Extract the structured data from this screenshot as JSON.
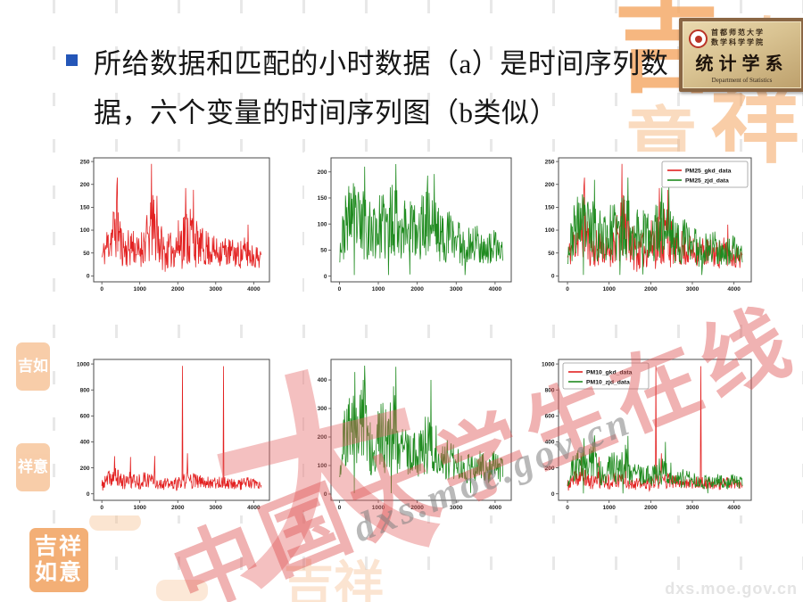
{
  "title": {
    "text": "所给数据和匹配的小时数据（a）是时间序列数据，六个变量的时间序列图（b类似）"
  },
  "plaque": {
    "line1": "首都师范大学",
    "line2": "数学科学学院",
    "dept": "统计学系",
    "english": "Department of Statistics"
  },
  "watermark": {
    "logo_char": "大",
    "text": "中国大学生在线",
    "url": "dxs.moe.gov.cn",
    "corner_url": "dxs.moe.gov.cn",
    "accent_color": "#e05050"
  },
  "decorations": {
    "color": "#f5a661",
    "ornament_chars": [
      "吉",
      "祥",
      "如",
      "意"
    ],
    "seal_small_1": "吉如",
    "seal_small_2": "祥意",
    "seal_large": "吉祥如意",
    "seal_faint": "吉祥"
  },
  "chart_data": {
    "type": "line",
    "note": "six matplotlib time-series panels; values estimated from axes",
    "series_library": {
      "PM25_gkd_data": {
        "color": "#e32222",
        "seed": 11,
        "keypoints": [
          [
            0,
            40,
            25
          ],
          [
            150,
            70,
            45
          ],
          [
            300,
            95,
            65
          ],
          [
            400,
            118,
            85
          ],
          [
            500,
            70,
            50
          ],
          [
            650,
            55,
            38
          ],
          [
            800,
            70,
            50
          ],
          [
            950,
            50,
            32
          ],
          [
            1100,
            70,
            50
          ],
          [
            1250,
            85,
            65
          ],
          [
            1350,
            105,
            78
          ],
          [
            1500,
            80,
            60
          ],
          [
            1650,
            48,
            40
          ],
          [
            1800,
            55,
            40
          ],
          [
            1950,
            62,
            46
          ],
          [
            2100,
            80,
            65
          ],
          [
            2250,
            90,
            76
          ],
          [
            2400,
            88,
            74
          ],
          [
            2550,
            62,
            40
          ],
          [
            2700,
            62,
            45
          ],
          [
            2850,
            58,
            38
          ],
          [
            3000,
            52,
            32
          ],
          [
            3150,
            56,
            36
          ],
          [
            3300,
            52,
            33
          ],
          [
            3450,
            50,
            31
          ],
          [
            3600,
            46,
            30
          ],
          [
            3750,
            50,
            36
          ],
          [
            3900,
            46,
            30
          ],
          [
            4050,
            42,
            26
          ],
          [
            4200,
            40,
            22
          ]
        ],
        "spikes": [
          [
            408,
            215
          ],
          [
            1308,
            245
          ],
          [
            1452,
            175
          ],
          [
            2208,
            192
          ],
          [
            2412,
            188
          ],
          [
            3852,
            112
          ]
        ]
      },
      "PM25_zjd_data": {
        "color": "#1f8b1f",
        "seed": 23,
        "keypoints": [
          [
            0,
            48,
            26
          ],
          [
            150,
            95,
            60
          ],
          [
            300,
            122,
            66
          ],
          [
            420,
            108,
            76
          ],
          [
            550,
            92,
            64
          ],
          [
            650,
            112,
            80
          ],
          [
            800,
            86,
            58
          ],
          [
            950,
            92,
            60
          ],
          [
            1100,
            95,
            64
          ],
          [
            1250,
            90,
            70
          ],
          [
            1400,
            118,
            80
          ],
          [
            1550,
            95,
            62
          ],
          [
            1700,
            92,
            64
          ],
          [
            1850,
            100,
            70
          ],
          [
            2000,
            68,
            42
          ],
          [
            2150,
            104,
            68
          ],
          [
            2300,
            108,
            70
          ],
          [
            2450,
            100,
            66
          ],
          [
            2600,
            72,
            46
          ],
          [
            2750,
            76,
            52
          ],
          [
            2900,
            78,
            52
          ],
          [
            3050,
            70,
            45
          ],
          [
            3200,
            58,
            42
          ],
          [
            3350,
            58,
            36
          ],
          [
            3500,
            66,
            40
          ],
          [
            3650,
            60,
            38
          ],
          [
            3800,
            48,
            30
          ],
          [
            3950,
            56,
            34
          ],
          [
            4100,
            50,
            30
          ],
          [
            4200,
            46,
            26
          ]
        ],
        "spikes": [
          [
            648,
            210
          ],
          [
            1452,
            215
          ],
          [
            2268,
            193
          ],
          [
            2436,
            196
          ],
          [
            384,
            2
          ],
          [
            1260,
            2
          ],
          [
            1812,
            3
          ],
          [
            3228,
            2
          ]
        ]
      },
      "PM10_gkd_data": {
        "color": "#e32222",
        "seed": 37,
        "keypoints": [
          [
            0,
            60,
            40
          ],
          [
            150,
            108,
            66
          ],
          [
            300,
            128,
            80
          ],
          [
            450,
            118,
            75
          ],
          [
            600,
            86,
            55
          ],
          [
            750,
            104,
            70
          ],
          [
            900,
            95,
            60
          ],
          [
            1050,
            100,
            64
          ],
          [
            1200,
            108,
            70
          ],
          [
            1350,
            118,
            78
          ],
          [
            1500,
            90,
            55
          ],
          [
            1650,
            76,
            48
          ],
          [
            1800,
            72,
            50
          ],
          [
            1950,
            72,
            50
          ],
          [
            2100,
            80,
            55
          ],
          [
            2250,
            112,
            84
          ],
          [
            2400,
            104,
            60
          ],
          [
            2550,
            92,
            52
          ],
          [
            2700,
            90,
            50
          ],
          [
            2850,
            92,
            52
          ],
          [
            3000,
            90,
            50
          ],
          [
            3150,
            85,
            46
          ],
          [
            3300,
            82,
            45
          ],
          [
            3450,
            80,
            42
          ],
          [
            3600,
            72,
            42
          ],
          [
            3750,
            88,
            58
          ],
          [
            3900,
            80,
            48
          ],
          [
            4050,
            68,
            40
          ],
          [
            4200,
            60,
            32
          ]
        ],
        "spikes": [
          [
            2124,
            985
          ],
          [
            3204,
            983
          ],
          [
            336,
            290
          ],
          [
            756,
            284
          ],
          [
            1392,
            292
          ],
          [
            2256,
            312
          ]
        ]
      },
      "PM10_zjd_data": {
        "color": "#1f8b1f",
        "seed": 51,
        "keypoints": [
          [
            0,
            95,
            45
          ],
          [
            150,
            198,
            120
          ],
          [
            300,
            238,
            140
          ],
          [
            420,
            210,
            140
          ],
          [
            550,
            238,
            150
          ],
          [
            650,
            258,
            160
          ],
          [
            800,
            170,
            105
          ],
          [
            950,
            184,
            115
          ],
          [
            1100,
            200,
            124
          ],
          [
            1250,
            200,
            134
          ],
          [
            1400,
            232,
            150
          ],
          [
            1550,
            150,
            86
          ],
          [
            1700,
            160,
            100
          ],
          [
            1850,
            164,
            104
          ],
          [
            2000,
            124,
            74
          ],
          [
            2150,
            168,
            104
          ],
          [
            2300,
            174,
            104
          ],
          [
            2450,
            164,
            100
          ],
          [
            2600,
            115,
            66
          ],
          [
            2750,
            124,
            74
          ],
          [
            2900,
            124,
            72
          ],
          [
            3050,
            114,
            68
          ],
          [
            3200,
            92,
            55
          ],
          [
            3350,
            92,
            52
          ],
          [
            3500,
            108,
            62
          ],
          [
            3650,
            95,
            55
          ],
          [
            3800,
            82,
            45
          ],
          [
            3950,
            98,
            55
          ],
          [
            4100,
            88,
            50
          ],
          [
            4200,
            80,
            42
          ]
        ],
        "spikes": [
          [
            396,
            428
          ],
          [
            648,
            450
          ],
          [
            1452,
            446
          ],
          [
            2352,
            400
          ],
          [
            384,
            3
          ],
          [
            1332,
            3
          ],
          [
            3372,
            4
          ]
        ]
      }
    },
    "charts": [
      {
        "name": "pm25-gkd-timeseries",
        "xlim": [
          -215,
          4415
        ],
        "ylim": [
          -13,
          258
        ],
        "xticks": [
          0,
          1000,
          2000,
          3000,
          4000
        ],
        "yticks": [
          0,
          50,
          100,
          150,
          200,
          250
        ],
        "series": [
          "PM25_gkd_data"
        ],
        "legend": null
      },
      {
        "name": "pm25-zjd-timeseries",
        "xlim": [
          -215,
          4415
        ],
        "ylim": [
          -11,
          227
        ],
        "xticks": [
          0,
          1000,
          2000,
          3000,
          4000
        ],
        "yticks": [
          0,
          50,
          100,
          150,
          200
        ],
        "series": [
          "PM25_zjd_data"
        ],
        "legend": null
      },
      {
        "name": "pm25-overlay-timeseries",
        "xlim": [
          -215,
          4415
        ],
        "ylim": [
          -13,
          258
        ],
        "xticks": [
          0,
          1000,
          2000,
          3000,
          4000
        ],
        "yticks": [
          0,
          50,
          100,
          150,
          200,
          250
        ],
        "series": [
          "PM25_gkd_data",
          "PM25_zjd_data"
        ],
        "legend": "upper-right"
      },
      {
        "name": "pm10-gkd-timeseries",
        "xlim": [
          -215,
          4415
        ],
        "ylim": [
          -50,
          1035
        ],
        "xticks": [
          0,
          1000,
          2000,
          3000,
          4000
        ],
        "yticks": [
          0,
          200,
          400,
          600,
          800,
          1000
        ],
        "series": [
          "PM10_gkd_data"
        ],
        "legend": null
      },
      {
        "name": "pm10-zjd-timeseries",
        "xlim": [
          -215,
          4415
        ],
        "ylim": [
          -22,
          472
        ],
        "xticks": [
          0,
          1000,
          2000,
          3000,
          4000
        ],
        "yticks": [
          0,
          100,
          200,
          300,
          400
        ],
        "series": [
          "PM10_zjd_data"
        ],
        "legend": null
      },
      {
        "name": "pm10-overlay-timeseries",
        "xlim": [
          -215,
          4415
        ],
        "ylim": [
          -50,
          1035
        ],
        "xticks": [
          0,
          1000,
          2000,
          3000,
          4000
        ],
        "yticks": [
          0,
          200,
          400,
          600,
          800,
          1000
        ],
        "series": [
          "PM10_gkd_data",
          "PM10_zjd_data"
        ],
        "legend": "upper-left"
      }
    ]
  }
}
